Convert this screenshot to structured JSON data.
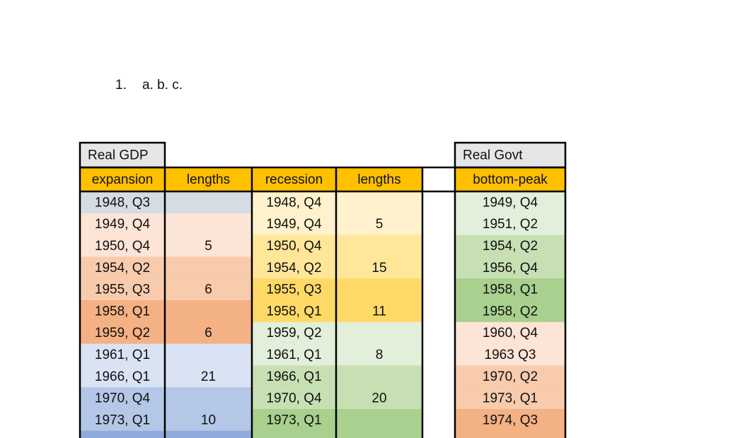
{
  "list_item": {
    "number": "1.",
    "text": "a. b. c."
  },
  "table": {
    "group_headers": [
      "Real GDP",
      "Real Govt"
    ],
    "headers": [
      "expansion",
      "lengths",
      "recession",
      "lengths",
      "bottom-peak"
    ],
    "rows": [
      [
        "1948, Q3",
        null,
        "1948, Q4",
        null,
        "1949, Q4"
      ],
      [
        "1949, Q4",
        null,
        "1949, Q4",
        5,
        "1951, Q2"
      ],
      [
        "1950, Q4",
        5,
        "1950, Q4",
        null,
        "1954, Q2"
      ],
      [
        "1954, Q2",
        null,
        "1954, Q2",
        15,
        "1956, Q4"
      ],
      [
        "1955, Q3",
        6,
        "1955, Q3",
        null,
        "1958, Q1"
      ],
      [
        "1958, Q1",
        null,
        "1958, Q1",
        11,
        "1958, Q2"
      ],
      [
        "1959, Q2",
        6,
        "1959, Q2",
        null,
        "1960, Q4"
      ],
      [
        "1961, Q1",
        null,
        "1961, Q1",
        8,
        "1963 Q3"
      ],
      [
        "1966, Q1",
        21,
        "1966, Q1",
        null,
        "1970, Q2"
      ],
      [
        "1970, Q4",
        null,
        "1970, Q4",
        20,
        "1973, Q1"
      ],
      [
        "1973, Q1",
        10,
        "1973, Q1",
        null,
        "1974, Q3"
      ]
    ]
  }
}
